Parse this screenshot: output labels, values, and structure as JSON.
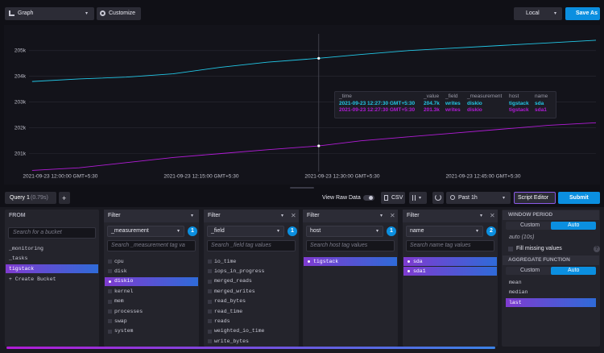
{
  "toolbar": {
    "view_type": "Graph",
    "customize": "Customize",
    "timezone": "Local",
    "save_as": "Save As"
  },
  "chart_data": {
    "type": "line",
    "x": [
      "2021-09-23T11:57:00+05:30",
      "2021-09-23T12:02:00+05:30",
      "2021-09-23T12:07:00+05:30",
      "2021-09-23T12:12:00+05:30",
      "2021-09-23T12:17:00+05:30",
      "2021-09-23T12:22:00+05:30",
      "2021-09-23T12:27:30+05:30",
      "2021-09-23T12:32:00+05:30",
      "2021-09-23T12:37:00+05:30",
      "2021-09-23T12:42:00+05:30",
      "2021-09-23T12:47:00+05:30",
      "2021-09-23T12:52:00+05:30",
      "2021-09-23T12:57:00+05:30"
    ],
    "series": [
      {
        "color": "#22c7e6",
        "values": [
          203800,
          203900,
          203970,
          204100,
          204350,
          204550,
          204700,
          204850,
          205000,
          205100,
          205200,
          205300,
          205400
        ]
      },
      {
        "color": "#b11cd6",
        "values": [
          200350,
          200450,
          200650,
          200850,
          201000,
          201150,
          201300,
          201500,
          201650,
          201800,
          201950,
          202100,
          202200
        ]
      }
    ],
    "xlim": [
      "2021-09-23T11:56:40+05:30",
      "2021-09-23T12:57:00+05:30"
    ],
    "xticks": [
      {
        "value": "2021-09-23T12:00:00+05:30",
        "label": "2021-09-23 12:00:00 GMT+5:30"
      },
      {
        "value": "2021-09-23T12:15:00+05:30",
        "label": "2021-09-23 12:15:00 GMT+5:30"
      },
      {
        "value": "2021-09-23T12:30:00+05:30",
        "label": "2021-09-23 12:30:00 GMT+5:30"
      },
      {
        "value": "2021-09-23T12:45:00+05:30",
        "label": "2021-09-23 12:45:00 GMT+5:30"
      }
    ],
    "ylim": [
      200300,
      205900
    ],
    "yticks": [
      {
        "value": 201000,
        "label": "201k"
      },
      {
        "value": 202000,
        "label": "202k"
      },
      {
        "value": 203000,
        "label": "203k"
      },
      {
        "value": 204000,
        "label": "204k"
      },
      {
        "value": 205000,
        "label": "205k"
      }
    ],
    "grid": true
  },
  "tooltip": {
    "columns": [
      "_time",
      "_value",
      "_field",
      "_measurement",
      "host",
      "name"
    ],
    "rows": [
      [
        "2021-09-23 12:27:30 GMT+5:30",
        "204.7k",
        "writes",
        "diskio",
        "tigstack",
        "sda"
      ],
      [
        "2021-09-23 12:27:30 GMT+5:30",
        "201.3k",
        "writes",
        "diskio",
        "tigstack",
        "sda1"
      ]
    ]
  },
  "query_bar": {
    "tab": "Query 1",
    "tab_time": "(0.79s)",
    "add": "+",
    "view_raw": "View Raw Data",
    "csv": "CSV",
    "time_range": "Past 1h",
    "script_editor": "Script Editor",
    "submit": "Submit"
  },
  "from": {
    "title": "FROM",
    "search": "Search for a bucket",
    "buckets": [
      {
        "label": "_monitoring",
        "selected": false
      },
      {
        "label": "_tasks",
        "selected": false
      },
      {
        "label": "tigstack",
        "selected": true
      }
    ],
    "create": "+ Create Bucket"
  },
  "filters": [
    {
      "title": "Filter",
      "key": "_measurement",
      "count": "1",
      "search": "Search _measurement tag va",
      "values": [
        {
          "label": "cpu",
          "selected": false
        },
        {
          "label": "disk",
          "selected": false
        },
        {
          "label": "diskio",
          "selected": true
        },
        {
          "label": "kernel",
          "selected": false
        },
        {
          "label": "mem",
          "selected": false
        },
        {
          "label": "processes",
          "selected": false
        },
        {
          "label": "swap",
          "selected": false
        },
        {
          "label": "system",
          "selected": false
        }
      ]
    },
    {
      "title": "Filter",
      "key": "_field",
      "count": "1",
      "search": "Search _field tag values",
      "values": [
        {
          "label": "io_time",
          "selected": false
        },
        {
          "label": "iops_in_progress",
          "selected": false
        },
        {
          "label": "merged_reads",
          "selected": false
        },
        {
          "label": "merged_writes",
          "selected": false
        },
        {
          "label": "read_bytes",
          "selected": false
        },
        {
          "label": "read_time",
          "selected": false
        },
        {
          "label": "reads",
          "selected": false
        },
        {
          "label": "weighted_io_time",
          "selected": false
        },
        {
          "label": "write_bytes",
          "selected": false
        }
      ]
    },
    {
      "title": "Filter",
      "key": "host",
      "count": "1",
      "search": "Search host tag values",
      "values": [
        {
          "label": "tigstack",
          "selected": true
        }
      ]
    },
    {
      "title": "Filter",
      "key": "name",
      "count": "2",
      "search": "Search name tag values",
      "values": [
        {
          "label": "sda",
          "selected": true
        },
        {
          "label": "sda1",
          "selected": true
        }
      ]
    }
  ],
  "window": {
    "window_title": "WINDOW PERIOD",
    "custom": "Custom",
    "auto": "Auto",
    "auto_value": "auto (10s)",
    "fill_missing": "Fill missing values",
    "help": "?",
    "aggregate_title": "AGGREGATE FUNCTION",
    "agg_custom": "Custom",
    "agg_auto": "Auto",
    "functions": [
      {
        "label": "mean",
        "selected": false
      },
      {
        "label": "median",
        "selected": false
      },
      {
        "label": "last",
        "selected": true
      }
    ]
  }
}
